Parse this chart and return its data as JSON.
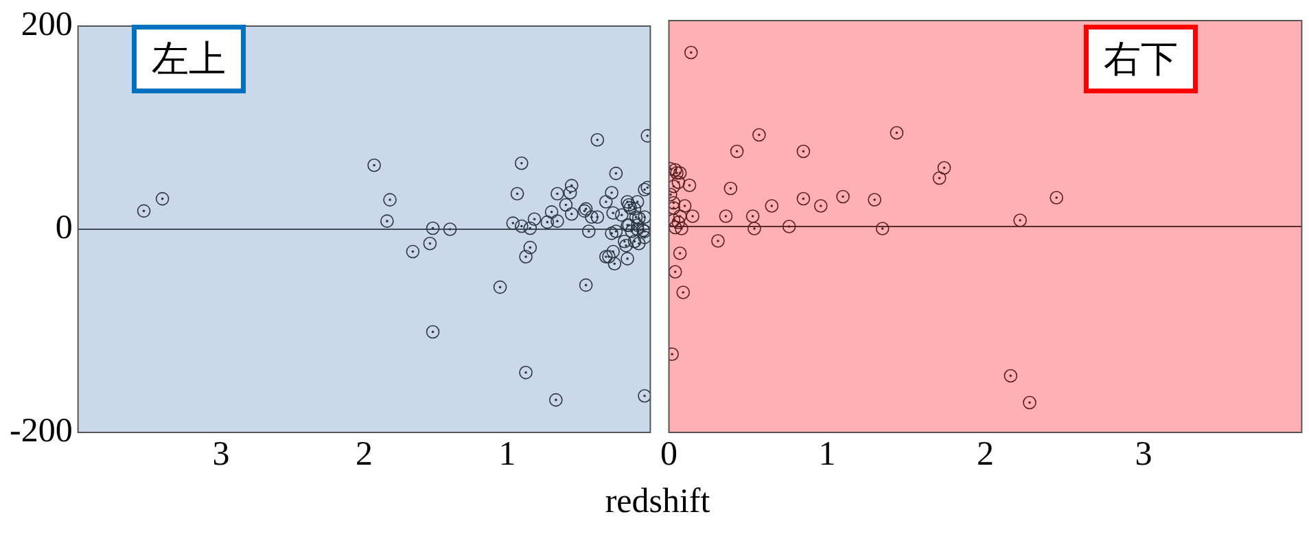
{
  "chart_data": [
    {
      "type": "scatter",
      "xlabel": "redshift",
      "annotations": [
        "左上"
      ],
      "xlim": [
        4,
        0
      ],
      "xticks": [
        1,
        2,
        3
      ],
      "ylim": [
        -200,
        200
      ],
      "yticks": [
        -200,
        0,
        200
      ],
      "marker": "circle",
      "bands": [
        {
          "axis": "x",
          "from": 4,
          "to": 0,
          "color": "#c9d8ea"
        }
      ],
      "ref_lines": [
        {
          "axis": "y",
          "value": 0,
          "color": "#404a55"
        }
      ],
      "x": [
        3.54,
        3.41,
        1.93,
        1.82,
        1.84,
        1.52,
        1.4,
        1.66,
        1.54,
        1.52,
        1.05,
        0.87,
        0.66,
        0.04,
        0.45,
        0.37,
        0.02,
        0.9,
        0.93,
        0.24,
        0.96,
        0.9,
        0.84,
        0.81,
        0.84,
        0.87,
        0.72,
        0.69,
        0.65,
        0.65,
        0.59,
        0.55,
        0.56,
        0.55,
        0.46,
        0.45,
        0.41,
        0.37,
        0.43,
        0.31,
        0.27,
        0.26,
        0.2,
        0.27,
        0.24,
        0.31,
        0.29,
        0.26,
        0.25,
        0.18,
        0.17,
        0.16,
        0.09,
        0.16,
        0.15,
        0.14,
        0.11,
        0.1,
        0.16,
        0.15,
        0.09,
        0.08,
        0.04,
        0.13,
        0.09,
        0.05,
        0.04,
        0.04,
        0.08,
        0.11,
        0.04,
        0.02
      ],
      "series": [
        {
          "color": "#2e3440",
          "values": [
            18,
            30,
            63,
            29,
            8,
            1,
            0,
            -22,
            -14,
            -101,
            -57,
            -141,
            -168,
            -164,
            -55,
            88,
            92,
            65,
            35,
            55,
            6,
            3,
            1,
            10,
            -18,
            -27,
            7,
            17,
            8,
            35,
            24,
            43,
            36,
            15,
            18,
            20,
            12,
            12,
            -2,
            27,
            36,
            16,
            14,
            -4,
            -2,
            -27,
            -27,
            -22,
            -34,
            -12,
            -16,
            -29,
            27,
            27,
            24,
            21,
            20,
            12,
            4,
            4,
            4,
            11,
            12,
            -2,
            0,
            -1,
            -2,
            -8,
            -14,
            -12,
            39,
            41
          ]
        }
      ]
    },
    {
      "type": "scatter",
      "xlim": [
        0,
        4
      ],
      "xticks": [
        0,
        1,
        2,
        3
      ],
      "ylim": [
        -200,
        200
      ],
      "marker": "circle",
      "tick_labels": "x",
      "annotations": [
        "右下"
      ],
      "bands": [
        {
          "axis": "x",
          "from": 0,
          "to": 4,
          "color": "#feb0b2"
        }
      ],
      "ref_lines": [
        {
          "axis": "y",
          "value": 0,
          "color": "#5a2a2a"
        }
      ],
      "x": [
        0.14,
        0.57,
        0.43,
        0.85,
        1.44,
        1.74,
        1.71,
        2.45,
        2.22,
        1.1,
        0.85,
        0.96,
        1.3,
        0.65,
        0.39,
        0.36,
        0.53,
        0.54,
        0.76,
        1.35,
        0.31,
        0.07,
        0.04,
        0.09,
        0.02,
        2.16,
        2.28,
        0.13,
        0.15,
        0.1,
        0.06,
        0.07,
        0.05,
        0.04,
        0.03,
        0.03,
        0.03,
        0.07,
        0.06,
        0.03,
        0.04,
        0.08,
        0.01,
        0.01
      ],
      "series": [
        {
          "color": "#5a1f1f",
          "values": [
            169,
            89,
            73,
            73,
            91,
            57,
            47,
            28,
            6,
            29,
            27,
            20,
            26,
            20,
            37,
            10,
            10,
            -2,
            0,
            -2,
            -14,
            -26,
            -44,
            -64,
            -124,
            -145,
            -171,
            40,
            10,
            20,
            43,
            52,
            52,
            55,
            39,
            23,
            18,
            10,
            4,
            6,
            -1,
            -2,
            56,
            31
          ]
        }
      ]
    }
  ]
}
